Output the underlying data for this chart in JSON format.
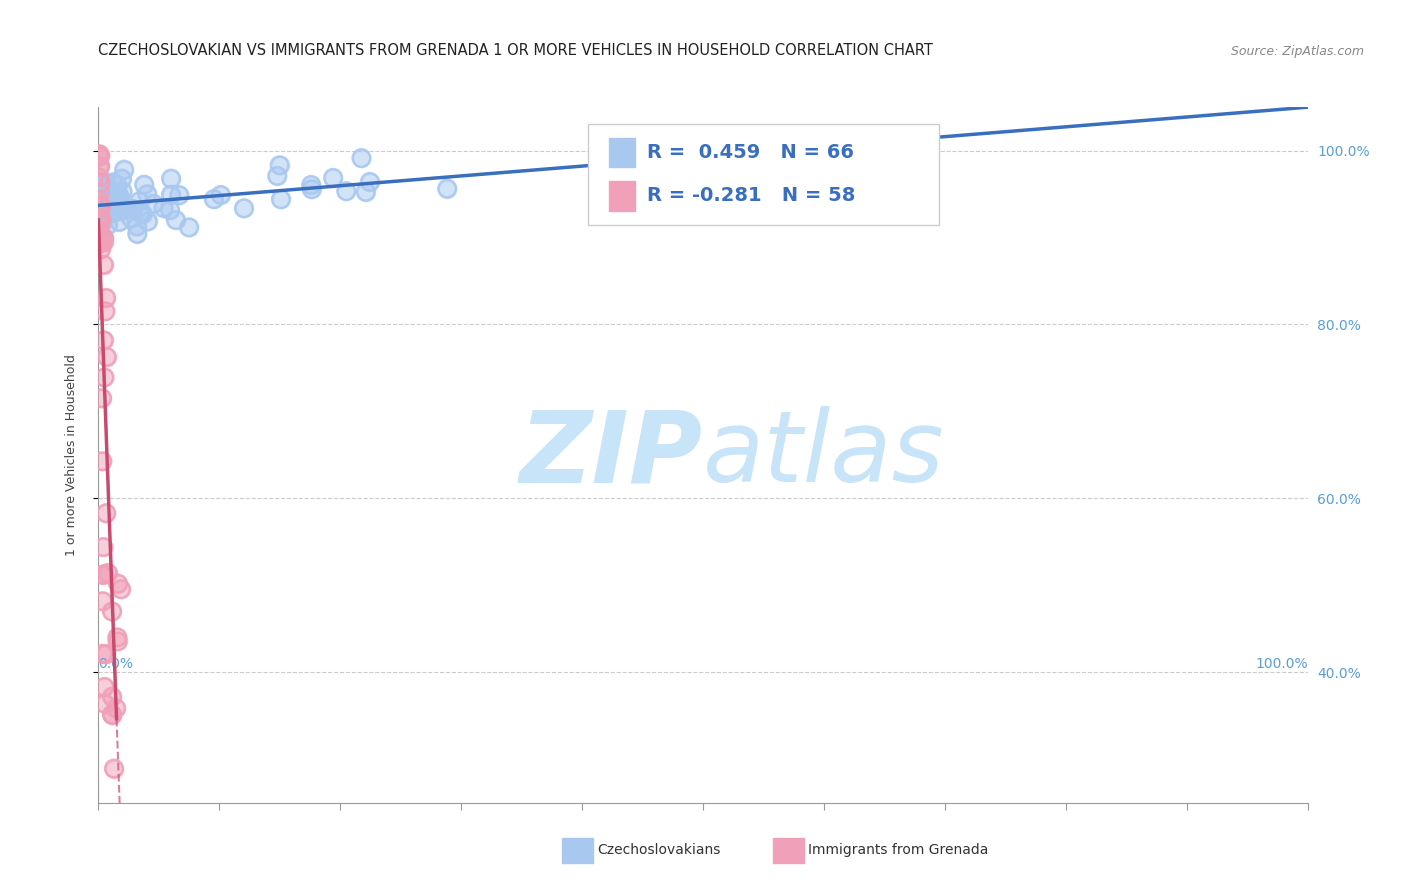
{
  "title": "CZECHOSLOVAKIAN VS IMMIGRANTS FROM GRENADA 1 OR MORE VEHICLES IN HOUSEHOLD CORRELATION CHART",
  "source": "Source: ZipAtlas.com",
  "ylabel": "1 or more Vehicles in Household",
  "blue_label": "Czechoslovakians",
  "pink_label": "Immigrants from Grenada",
  "blue_R": 0.459,
  "blue_N": 66,
  "pink_R": -0.281,
  "pink_N": 58,
  "blue_line_color": "#3a6fbf",
  "pink_line_color": "#c84b6e",
  "blue_scatter_color": "#a8c8f0",
  "pink_scatter_color": "#f0a0b8",
  "grid_color": "#cccccc",
  "watermark_zip": "ZIP",
  "watermark_atlas": "atlas",
  "watermark_color_zip": "#c8e4f8",
  "watermark_color_atlas": "#c8e4f8",
  "title_fontsize": 10.5,
  "axis_label_fontsize": 9,
  "tick_fontsize": 10,
  "legend_fontsize": 14,
  "xlim": [
    0.0,
    1.0
  ],
  "ylim": [
    0.25,
    1.05
  ],
  "y_ticks": [
    0.4,
    0.6,
    0.8,
    1.0
  ],
  "y_tick_labels": [
    "40.0%",
    "60.0%",
    "80.0%",
    "100.0%"
  ]
}
